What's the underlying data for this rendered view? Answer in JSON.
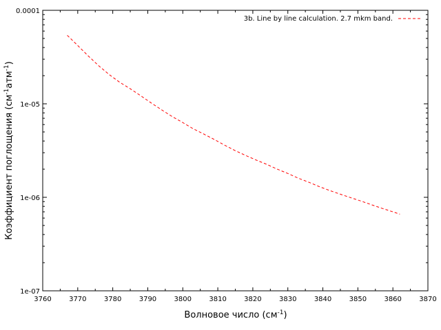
{
  "chart_data": {
    "type": "line",
    "scale": {
      "y": "log"
    },
    "xlim": [
      3760,
      3870
    ],
    "ylim": [
      1e-07,
      0.0001
    ],
    "x_ticks": [
      3760,
      3770,
      3780,
      3790,
      3800,
      3810,
      3820,
      3830,
      3840,
      3850,
      3860,
      3870
    ],
    "x_tick_labels": [
      "3760",
      "3770",
      "3780",
      "3790",
      "3800",
      "3810",
      "3820",
      "3830",
      "3840",
      "3850",
      "3860",
      "3870"
    ],
    "y_ticks": [
      1e-07,
      1e-06,
      1e-05,
      0.0001
    ],
    "y_tick_labels": [
      "1e-07",
      "1e-06",
      "1e-05",
      "0.0001"
    ],
    "xlabel": {
      "text": "Волновое число (см",
      "sup": "-1",
      "tail": ")"
    },
    "ylabel": {
      "prefix": "Коэффициент поглощения (см",
      "sup1": "-1",
      "mid": "атм",
      "sup2": "-1",
      "tail": ")"
    },
    "legend_position": "top-right",
    "grid": false,
    "series": [
      {
        "name": "3b. Line by line calculation. 2.7 mkm band.",
        "color": "#ff0000",
        "dash": "dashed",
        "x": [
          3767,
          3770,
          3773,
          3776,
          3779,
          3782,
          3785,
          3788,
          3791,
          3794,
          3797,
          3800,
          3803,
          3806,
          3809,
          3812,
          3815,
          3818,
          3821,
          3824,
          3827,
          3830,
          3833,
          3836,
          3839,
          3842,
          3845,
          3848,
          3851,
          3854,
          3857,
          3860,
          3862
        ],
        "y": [
          5.4e-05,
          4.2e-05,
          3.25e-05,
          2.55e-05,
          2.05e-05,
          1.7e-05,
          1.45e-05,
          1.22e-05,
          1.02e-05,
          8.6e-06,
          7.3e-06,
          6.3e-06,
          5.4e-06,
          4.75e-06,
          4.15e-06,
          3.6e-06,
          3.15e-06,
          2.8e-06,
          2.5e-06,
          2.25e-06,
          2e-06,
          1.8e-06,
          1.6e-06,
          1.45e-06,
          1.3e-06,
          1.18e-06,
          1.08e-06,
          9.9e-07,
          9.1e-07,
          8.3e-07,
          7.6e-07,
          7e-07,
          6.6e-07
        ]
      }
    ]
  }
}
